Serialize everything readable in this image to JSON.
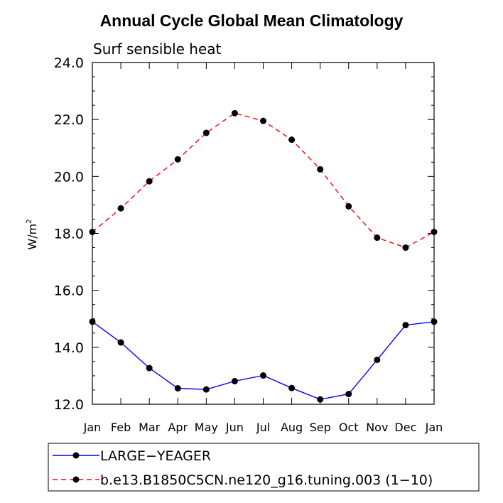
{
  "title": "Annual Cycle Global Mean Climatology",
  "chart_data": {
    "type": "line",
    "subtitle": "Surf sensible heat",
    "ylabel": "W/m",
    "ylabel_sup": "2",
    "xlabel": "",
    "categories": [
      "Jan",
      "Feb",
      "Mar",
      "Apr",
      "May",
      "Jun",
      "Jul",
      "Aug",
      "Sep",
      "Oct",
      "Nov",
      "Dec",
      "Jan"
    ],
    "ylim": [
      12.0,
      24.0
    ],
    "yticks": [
      "12.0",
      "14.0",
      "16.0",
      "18.0",
      "20.0",
      "22.0",
      "24.0"
    ],
    "legend_position": "bottom",
    "grid": false,
    "series": [
      {
        "name": "LARGE−YEAGER",
        "color": "#0000ff",
        "dash": "solid",
        "values": [
          14.9,
          14.17,
          13.27,
          12.56,
          12.52,
          12.81,
          13.01,
          12.57,
          12.17,
          12.36,
          13.56,
          14.78,
          14.9
        ]
      },
      {
        "name": "b.e13.B1850C5CN.ne120_g16.tuning.003 (1−10)",
        "color": "#ff0000",
        "dash": "dashed",
        "values": [
          18.05,
          18.88,
          19.83,
          20.6,
          21.53,
          22.22,
          21.95,
          21.29,
          20.25,
          18.95,
          17.85,
          17.5,
          18.05
        ]
      }
    ]
  }
}
